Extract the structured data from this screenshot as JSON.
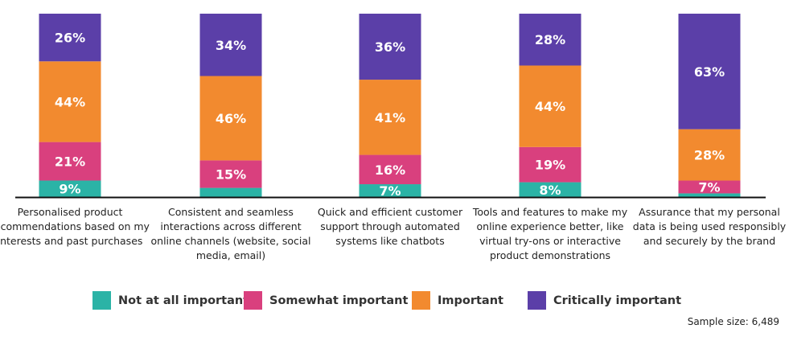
{
  "chart_data": {
    "type": "bar",
    "stacked": true,
    "categories": [
      "Personalised product recommendations based on my interests and past purchases",
      "Consistent and seamless interactions across different online channels (website, social media, email)",
      "Quick and efficient customer support through automated systems like chatbots",
      "Tools and features to make my online experience better, like virtual try-ons or interactive product demonstrations",
      "Assurance that my personal data is being used responsibly and securely by the brand"
    ],
    "series": [
      {
        "name": "Not at all important",
        "color": "#2bb3a6",
        "values": [
          9,
          5,
          7,
          8,
          2
        ],
        "labels": [
          "9%",
          "",
          "7%",
          "8%",
          ""
        ]
      },
      {
        "name": "Somewhat important",
        "color": "#d9407e",
        "values": [
          21,
          15,
          16,
          19,
          7
        ],
        "labels": [
          "21%",
          "15%",
          "16%",
          "19%",
          "7%"
        ]
      },
      {
        "name": "Important",
        "color": "#f28a2f",
        "values": [
          44,
          46,
          41,
          44,
          28
        ],
        "labels": [
          "44%",
          "46%",
          "41%",
          "44%",
          "28%"
        ]
      },
      {
        "name": "Critically important",
        "color": "#5b3fa8",
        "values": [
          26,
          34,
          36,
          28,
          63
        ],
        "labels": [
          "26%",
          "34%",
          "36%",
          "28%",
          "63%"
        ]
      }
    ],
    "ylim": [
      0,
      100
    ],
    "grid": false,
    "legend_position": "bottom",
    "note": "Sample size: 6,489"
  }
}
